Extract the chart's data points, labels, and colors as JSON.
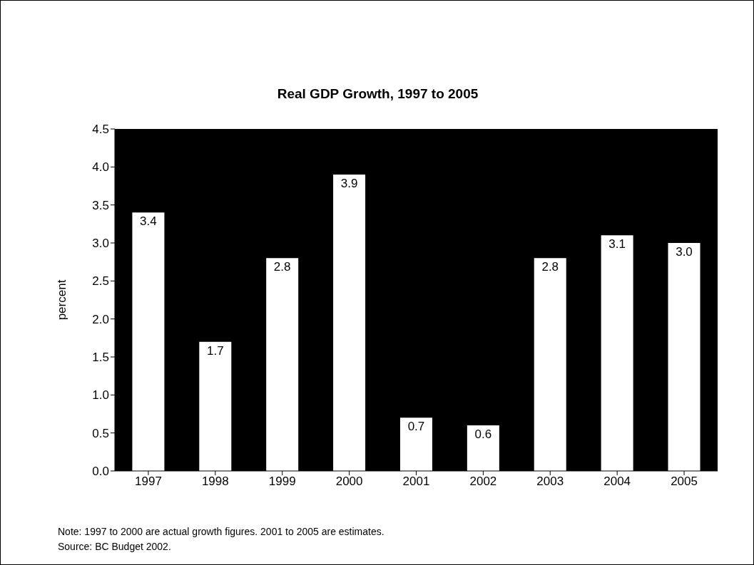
{
  "chart_data": {
    "type": "bar",
    "title": "Real GDP Growth, 1997 to 2005",
    "ylabel": "percent",
    "categories": [
      "1997",
      "1998",
      "1999",
      "2000",
      "2001",
      "2002",
      "2003",
      "2004",
      "2005"
    ],
    "values": [
      3.4,
      1.7,
      2.8,
      3.9,
      0.7,
      0.6,
      2.8,
      3.1,
      3.0
    ],
    "value_labels": [
      "3.4",
      "1.7",
      "2.8",
      "3.9",
      "0.7",
      "0.6",
      "2.8",
      "3.1",
      "3.0"
    ],
    "color": "#ffffff",
    "ylim": [
      0,
      4.5
    ],
    "yticks": [
      {
        "value": 0,
        "label": "0.0"
      },
      {
        "value": 0.5,
        "label": "0.5"
      },
      {
        "value": 1,
        "label": "1.0"
      },
      {
        "value": 1.5,
        "label": "1.5"
      },
      {
        "value": 2,
        "label": "2.0"
      },
      {
        "value": 2.5,
        "label": "2.5"
      },
      {
        "value": 3,
        "label": "3.0"
      },
      {
        "value": 3.5,
        "label": "3.5"
      },
      {
        "value": 4,
        "label": "4.0"
      },
      {
        "value": 4.5,
        "label": "4.5"
      }
    ],
    "legend": false,
    "annotations": [
      "Note: 1997 to 2000 are actual growth figures. 2001 to 2005 are estimates.",
      "Source: BC Budget 2002."
    ]
  }
}
